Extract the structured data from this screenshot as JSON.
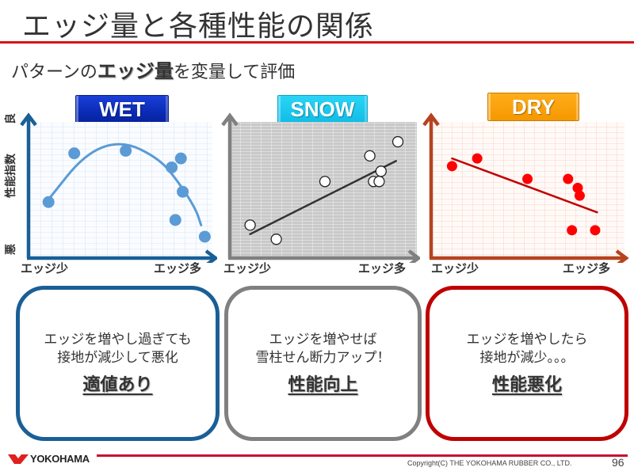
{
  "title": "エッジ量と各種性能の関係",
  "subtitle": {
    "prefix": "パターンの",
    "emphasis": "エッジ量",
    "suffix": "を変量して評価"
  },
  "y_axis": {
    "top": "良",
    "middle": "性能指数",
    "bottom": "悪"
  },
  "panels": [
    {
      "label": "WET",
      "x_min_label": "エッジ少",
      "x_max_label": "エッジ多",
      "color": "#1a5f96",
      "point_color": "#5b9bd5",
      "box_lines": [
        "エッジを増やし過ぎても",
        "接地が減少して悪化"
      ],
      "conclusion": "適値あり"
    },
    {
      "label": "SNOW",
      "x_min_label": "エッジ少",
      "x_max_label": "エッジ多",
      "color": "#808080",
      "point_color": "#ffffff",
      "box_lines": [
        "エッジを増やせば",
        "雪柱せん断力アップ！"
      ],
      "conclusion": "性能向上"
    },
    {
      "label": "DRY",
      "x_min_label": "エッジ少",
      "x_max_label": "エッジ多",
      "color": "#c00000",
      "point_color": "#ff0000",
      "box_lines": [
        "エッジを増やしたら",
        "接地が減少。。。"
      ],
      "conclusion": "性能悪化"
    }
  ],
  "chart_data": [
    {
      "type": "scatter",
      "title": "WET",
      "xlabel": "エッジ量 (エッジ少 → エッジ多)",
      "ylabel": "性能指数 (悪 → 良)",
      "xlim": [
        0,
        100
      ],
      "ylim": [
        0,
        100
      ],
      "grid": true,
      "points": [
        {
          "x": 10,
          "y": 40
        },
        {
          "x": 24,
          "y": 78
        },
        {
          "x": 52,
          "y": 80
        },
        {
          "x": 77,
          "y": 67
        },
        {
          "x": 82,
          "y": 74
        },
        {
          "x": 83,
          "y": 48
        },
        {
          "x": 79,
          "y": 26
        },
        {
          "x": 95,
          "y": 13
        }
      ],
      "fit": {
        "type": "quadratic",
        "x": [
          10,
          30,
          50,
          70,
          80,
          90,
          93
        ],
        "y": [
          42,
          78,
          88,
          74,
          57,
          35,
          22
        ]
      },
      "annotation": "適値あり"
    },
    {
      "type": "scatter",
      "title": "SNOW",
      "xlabel": "エッジ量 (エッジ少 → エッジ多)",
      "ylabel": "性能指数 (悪 → 良)",
      "xlim": [
        0,
        100
      ],
      "ylim": [
        0,
        100
      ],
      "grid": true,
      "points": [
        {
          "x": 10,
          "y": 22
        },
        {
          "x": 24,
          "y": 11
        },
        {
          "x": 50,
          "y": 56
        },
        {
          "x": 74,
          "y": 76
        },
        {
          "x": 80,
          "y": 64
        },
        {
          "x": 76,
          "y": 56
        },
        {
          "x": 79,
          "y": 56
        },
        {
          "x": 89,
          "y": 87
        }
      ],
      "fit": {
        "type": "linear",
        "x": [
          10,
          88
        ],
        "y": [
          15,
          72
        ]
      },
      "annotation": "性能向上"
    },
    {
      "type": "scatter",
      "title": "DRY",
      "xlabel": "エッジ量 (エッジ少 → エッジ多)",
      "ylabel": "性能指数 (悪 → 良)",
      "xlim": [
        0,
        100
      ],
      "ylim": [
        0,
        100
      ],
      "grid": true,
      "points": [
        {
          "x": 10,
          "y": 68
        },
        {
          "x": 23,
          "y": 74
        },
        {
          "x": 49,
          "y": 58
        },
        {
          "x": 70,
          "y": 58
        },
        {
          "x": 75,
          "y": 51
        },
        {
          "x": 76,
          "y": 45
        },
        {
          "x": 72,
          "y": 18
        },
        {
          "x": 84,
          "y": 18
        }
      ],
      "fit": {
        "type": "linear",
        "x": [
          10,
          85
        ],
        "y": [
          74,
          32
        ]
      },
      "annotation": "性能悪化"
    }
  ],
  "footer": {
    "logo_text": "YOKOHAMA",
    "copyright": "Copyright(C) THE YOKOHAMA RUBBER CO., LTD.",
    "page_number": "96"
  }
}
